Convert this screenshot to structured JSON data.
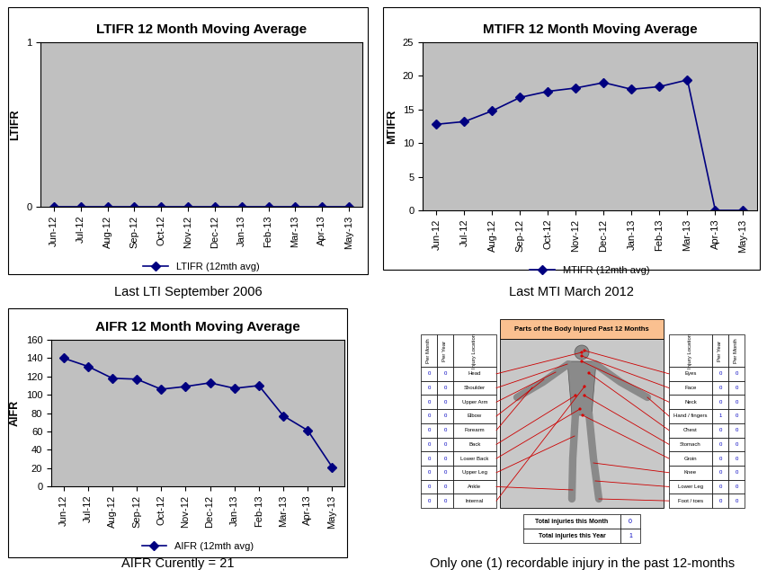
{
  "chart_data": [
    {
      "type": "line",
      "title": "LTIFR 12 Month Moving Average",
      "y_label": "LTIFR",
      "categories": [
        "Jun-12",
        "Jul-12",
        "Aug-12",
        "Sep-12",
        "Oct-12",
        "Nov-12",
        "Dec-12",
        "Jan-13",
        "Feb-13",
        "Mar-13",
        "Apr-13",
        "May-13"
      ],
      "series": [
        {
          "name": "LTIFR (12mth avg)",
          "color": "#000080",
          "marker": "diamond",
          "line_style": "solid",
          "values": [
            0,
            0,
            0,
            0,
            0,
            0,
            0,
            0,
            0,
            0,
            0,
            0
          ]
        }
      ],
      "ylim": [
        0,
        1
      ],
      "yticks": [
        0,
        1
      ],
      "grid": false,
      "legend": "bottom",
      "caption": "Last LTI September 2006"
    },
    {
      "type": "line",
      "title": "MTIFR 12 Month Moving Average",
      "y_label": "MTIFR",
      "categories": [
        "Jun-12",
        "Jul-12",
        "Aug-12",
        "Sep-12",
        "Oct-12",
        "Nov-12",
        "Dec-12",
        "Jan-13",
        "Feb-13",
        "Mar-13",
        "Apr-13",
        "May-13"
      ],
      "series": [
        {
          "name": "MTIFR (12mth avg)",
          "color": "#000080",
          "marker": "diamond",
          "line_style": "solid",
          "values": [
            12.8,
            13.2,
            14.8,
            16.8,
            17.7,
            18.2,
            19.0,
            18.0,
            18.4,
            19.4,
            0,
            0
          ]
        }
      ],
      "ylim": [
        0,
        25
      ],
      "yticks": [
        0,
        5,
        10,
        15,
        20,
        25
      ],
      "grid": false,
      "legend": "bottom",
      "caption": "Last MTI March 2012"
    },
    {
      "type": "line",
      "title": "AIFR 12 Month Moving Average",
      "y_label": "AIFR",
      "categories": [
        "Jun-12",
        "Jul-12",
        "Aug-12",
        "Sep-12",
        "Oct-12",
        "Nov-12",
        "Dec-12",
        "Jan-13",
        "Feb-13",
        "Mar-13",
        "Apr-13",
        "May-13"
      ],
      "series": [
        {
          "name": "AIFR (12mth avg)",
          "color": "#000080",
          "marker": "diamond",
          "line_style": "solid",
          "values": [
            140,
            131,
            118,
            117,
            106,
            109,
            113,
            107,
            110,
            77,
            61,
            21
          ]
        }
      ],
      "ylim": [
        0,
        160
      ],
      "yticks": [
        0,
        20,
        40,
        60,
        80,
        100,
        120,
        140,
        160
      ],
      "grid": false,
      "legend": "bottom",
      "caption": "AIFR Curently = 21"
    }
  ],
  "body_diagram": {
    "title": "Parts of the Body Injured Past 12 Months",
    "left_table": {
      "header": [
        "Per Month",
        "Per Year",
        "Injury Location"
      ],
      "rows": [
        [
          0,
          0,
          "Head"
        ],
        [
          0,
          0,
          "Shoulder"
        ],
        [
          0,
          0,
          "Upper Arm"
        ],
        [
          0,
          0,
          "Elbow"
        ],
        [
          0,
          0,
          "Forearm"
        ],
        [
          0,
          0,
          "Back"
        ],
        [
          0,
          0,
          "Lower Back"
        ],
        [
          0,
          0,
          "Upper Leg"
        ],
        [
          0,
          0,
          "Ankle"
        ],
        [
          0,
          0,
          "Internal"
        ]
      ]
    },
    "right_table": {
      "header": [
        "Injury Location",
        "Per Year",
        "Per Month"
      ],
      "rows": [
        [
          "Eyes",
          0,
          0
        ],
        [
          "Face",
          0,
          0
        ],
        [
          "Neck",
          0,
          0
        ],
        [
          "Hand / fingers",
          1,
          0
        ],
        [
          "Chest",
          0,
          0
        ],
        [
          "Stomach",
          0,
          0
        ],
        [
          "Groin",
          0,
          0
        ],
        [
          "Knee",
          0,
          0
        ],
        [
          "Lower Leg",
          0,
          0
        ],
        [
          "Foot / toes",
          0,
          0
        ]
      ]
    },
    "totals": [
      [
        "Total injuries this Month",
        0
      ],
      [
        "Total injuries this Year",
        1
      ]
    ],
    "caption": "Only one (1) recordable injury in the past 12-months"
  }
}
